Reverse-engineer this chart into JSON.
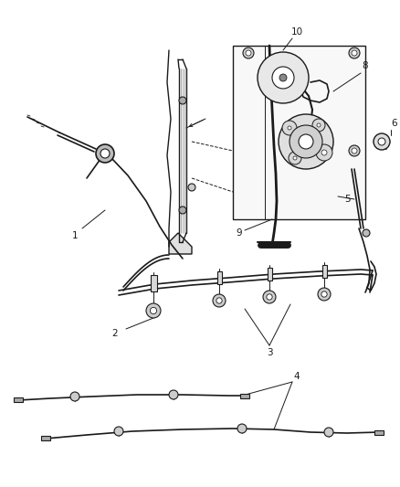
{
  "bg_color": "#ffffff",
  "line_color": "#1a1a1a",
  "fig_width": 4.38,
  "fig_height": 5.33,
  "dpi": 100,
  "label_fontsize": 7.5,
  "lw_cable": 1.2,
  "lw_thin": 0.7,
  "lw_structure": 1.0
}
